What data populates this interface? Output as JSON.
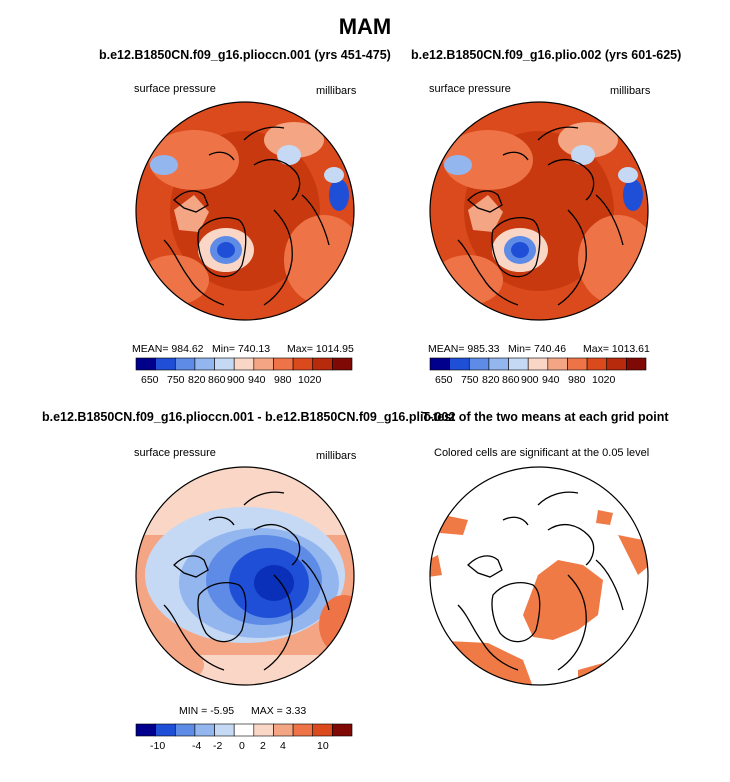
{
  "page": {
    "title": "MAM"
  },
  "panels": [
    {
      "id": "top-left",
      "title": "b.e12.B1850CN.f09_g16.plioccn.001 (yrs 451-475)",
      "left_label": "surface pressure",
      "right_label": "millibars",
      "stats": {
        "mean": "MEAN= 984.62",
        "min": "Min= 740.13",
        "max": "Max= 1014.95"
      },
      "colorbar": {
        "labels": [
          "650",
          "750",
          "820",
          "860",
          "900",
          "940",
          "980",
          "1020"
        ]
      }
    },
    {
      "id": "top-right",
      "title": "b.e12.B1850CN.f09_g16.plio.002 (yrs 601-625)",
      "left_label": "surface pressure",
      "right_label": "millibars",
      "stats": {
        "mean": "MEAN= 985.33",
        "min": "Min= 740.46",
        "max": "Max= 1013.61"
      },
      "colorbar": {
        "labels": [
          "650",
          "750",
          "820",
          "860",
          "900",
          "940",
          "980",
          "1020"
        ]
      }
    },
    {
      "id": "bottom-left",
      "title": "b.e12.B1850CN.f09_g16.plioccn.001 - b.e12.B1850CN.f09_g16.plio.002",
      "left_label": "surface pressure",
      "right_label": "millibars",
      "stats": {
        "min": "MIN =   -5.95",
        "max": "MAX =    3.33"
      },
      "colorbar": {
        "labels": [
          "-10",
          "-4",
          "-2",
          "0",
          "2",
          "4",
          "10"
        ]
      }
    },
    {
      "id": "bottom-right",
      "title": "T-test of the two means at each grid point",
      "subtitle": "Colored cells are significant at the 0.05 level"
    }
  ],
  "colors": {
    "abs_scale": [
      "#00008c",
      "#1f4fd6",
      "#5d8be6",
      "#93b6ef",
      "#c5d9f5",
      "#f9d6c6",
      "#f4a584",
      "#ee7448",
      "#db4a1c",
      "#b72a0c",
      "#7f0a05"
    ],
    "diff_scale": [
      "#00008c",
      "#1f4fd6",
      "#5d8be6",
      "#93b6ef",
      "#c5d9f5",
      "#ffffff",
      "#f9d6c6",
      "#f4a584",
      "#ee7448",
      "#db4a1c",
      "#7f0a05"
    ],
    "significant": "#f07a45"
  }
}
